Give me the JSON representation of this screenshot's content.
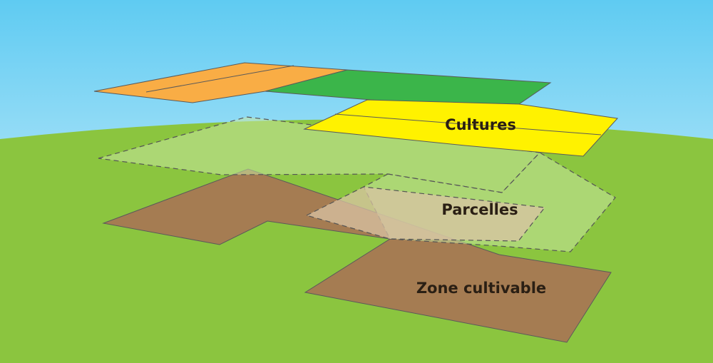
{
  "labels": {
    "cultures": "Cultures",
    "parcelles": "Parcelles",
    "zone_cultivable": "Zone cultivable"
  },
  "colors": {
    "sky_top": "#5fcbf2",
    "sky_bottom": "#eaf7fc",
    "ground": "#8bc53f",
    "zone_cultivable": "#a57c52",
    "parcelles": "#c8e6a0",
    "crop_orange": "#f9ad45",
    "crop_green": "#3bb54a",
    "crop_yellow": "#fff200",
    "outline": "#5a5a5a",
    "label_text": "#2a1f14"
  }
}
